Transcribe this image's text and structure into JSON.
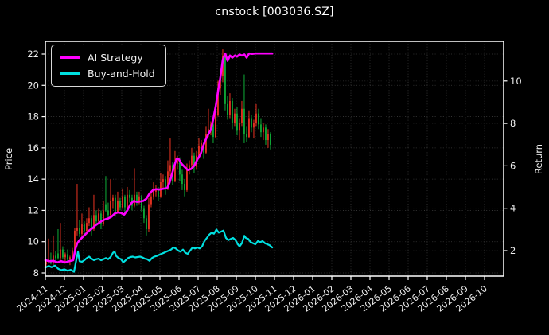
{
  "title": "cnstock [003036.SZ]",
  "legend": {
    "items": [
      {
        "label": "AI Strategy",
        "color": "#ff00ff"
      },
      {
        "label": "Buy-and-Hold",
        "color": "#00e0e0"
      }
    ]
  },
  "axes": {
    "left_label": "Price",
    "right_label": "Return",
    "price_ticks": [
      8,
      10,
      12,
      14,
      16,
      18,
      20,
      22
    ],
    "return_ticks": [
      2,
      4,
      6,
      8,
      10
    ],
    "x_ticks": [
      "2024-11",
      "2024-12",
      "2025-01",
      "2025-02",
      "2025-03",
      "2025-04",
      "2025-05",
      "2025-06",
      "2025-07",
      "2025-08",
      "2025-09",
      "2025-10",
      "2025-11",
      "2025-12",
      "2026-01",
      "2026-02",
      "2026-03",
      "2026-04",
      "2026-05",
      "2026-06",
      "2026-07",
      "2026-08",
      "2026-09",
      "2026-10"
    ]
  },
  "colors": {
    "background": "#000000",
    "frame": "#ffffff",
    "grid": "#6f6f6f",
    "text": "#eeeeee",
    "candle_up": "#ee3322",
    "candle_down": "#0fae38",
    "ai_strategy": "#ff00ff",
    "buy_and_hold": "#00e0e0"
  },
  "chart_data": {
    "type": "candlestick+line",
    "title": "cnstock [003036.SZ]",
    "x_axis": "months from 2024-11 (each x tick = 1 month, data ends ~2025-11)",
    "price_ylim": [
      7.8,
      22.8
    ],
    "return_ylim": [
      0.8,
      11.9
    ],
    "grid": "dotted, both y-axes and monthly x",
    "legend_position": "upper-left",
    "candles_note": "OHLC in Price units (left axis); red = up, green = down; t = months since 2024-11",
    "candles_t0": 0.04,
    "candles_dt": 0.125,
    "candles": [
      [
        8.55,
        8.9,
        8.35,
        8.7
      ],
      [
        8.7,
        10.2,
        8.6,
        8.8
      ],
      [
        8.8,
        9.3,
        8.55,
        8.65
      ],
      [
        8.65,
        10.4,
        8.5,
        9.1
      ],
      [
        9.1,
        9.4,
        8.8,
        8.95
      ],
      [
        9.25,
        10.8,
        8.85,
        8.95
      ],
      [
        8.95,
        11.2,
        8.7,
        9.5
      ],
      [
        9.5,
        9.7,
        8.9,
        9.0
      ],
      [
        9.0,
        9.3,
        8.6,
        9.2
      ],
      [
        9.2,
        9.5,
        8.75,
        8.85
      ],
      [
        8.85,
        9.1,
        8.5,
        9.0
      ],
      [
        9.0,
        9.6,
        8.85,
        9.45
      ],
      [
        9.45,
        10.9,
        9.3,
        10.7
      ],
      [
        10.7,
        13.7,
        10.4,
        10.9
      ],
      [
        10.9,
        11.4,
        10.3,
        10.5
      ],
      [
        10.5,
        11.8,
        10.3,
        11.1
      ],
      [
        11.1,
        11.3,
        10.5,
        10.7
      ],
      [
        10.7,
        11.5,
        10.6,
        11.2
      ],
      [
        11.2,
        12.2,
        11.0,
        11.5
      ],
      [
        11.5,
        11.7,
        10.4,
        10.8
      ],
      [
        10.8,
        13.0,
        10.7,
        11.7
      ],
      [
        11.7,
        12.0,
        11.1,
        11.3
      ],
      [
        11.3,
        12.1,
        11.2,
        11.8
      ],
      [
        11.8,
        12.0,
        10.8,
        11.1
      ],
      [
        11.1,
        12.6,
        11.0,
        12.0
      ],
      [
        12.4,
        14.2,
        11.9,
        12.0
      ],
      [
        12.0,
        12.5,
        11.4,
        11.7
      ],
      [
        11.7,
        14.0,
        11.6,
        12.6
      ],
      [
        12.6,
        13.0,
        12.1,
        12.8
      ],
      [
        12.8,
        13.0,
        11.6,
        11.9
      ],
      [
        11.9,
        13.2,
        11.8,
        12.6
      ],
      [
        12.6,
        12.8,
        12.0,
        12.2
      ],
      [
        12.2,
        13.4,
        12.1,
        12.9
      ],
      [
        12.9,
        13.0,
        11.9,
        12.2
      ],
      [
        12.2,
        13.5,
        12.1,
        13.0
      ],
      [
        13.0,
        13.3,
        12.5,
        12.8
      ],
      [
        12.8,
        13.0,
        12.0,
        12.3
      ],
      [
        12.3,
        14.7,
        12.2,
        13.0
      ],
      [
        13.0,
        13.2,
        12.3,
        12.5
      ],
      [
        12.5,
        13.2,
        12.4,
        12.9
      ],
      [
        12.9,
        13.0,
        11.9,
        12.1
      ],
      [
        12.1,
        12.3,
        11.2,
        11.5
      ],
      [
        11.5,
        11.7,
        10.4,
        10.8
      ],
      [
        10.8,
        12.8,
        10.6,
        12.4
      ],
      [
        12.4,
        13.1,
        12.2,
        12.9
      ],
      [
        12.9,
        13.8,
        12.7,
        13.2
      ],
      [
        13.2,
        13.6,
        12.9,
        13.4
      ],
      [
        13.4,
        13.5,
        12.6,
        12.9
      ],
      [
        12.9,
        14.4,
        12.8,
        13.8
      ],
      [
        13.8,
        14.3,
        13.4,
        14.0
      ],
      [
        14.0,
        14.2,
        13.0,
        13.4
      ],
      [
        13.4,
        15.2,
        13.3,
        14.5
      ],
      [
        14.5,
        16.6,
        14.2,
        14.9
      ],
      [
        14.9,
        15.1,
        13.6,
        13.9
      ],
      [
        13.9,
        15.8,
        13.8,
        15.0
      ],
      [
        15.0,
        15.5,
        14.6,
        15.2
      ],
      [
        15.2,
        15.4,
        13.9,
        14.3
      ],
      [
        14.3,
        14.6,
        13.3,
        13.7
      ],
      [
        13.7,
        14.0,
        12.9,
        13.3
      ],
      [
        13.3,
        15.0,
        13.2,
        14.6
      ],
      [
        14.6,
        15.2,
        14.3,
        14.9
      ],
      [
        14.9,
        16.0,
        14.7,
        15.5
      ],
      [
        15.5,
        15.7,
        14.4,
        14.8
      ],
      [
        14.8,
        15.8,
        14.6,
        15.5
      ],
      [
        15.5,
        16.6,
        15.3,
        16.1
      ],
      [
        16.1,
        16.5,
        15.7,
        16.3
      ],
      [
        16.3,
        16.4,
        15.3,
        15.7
      ],
      [
        15.7,
        17.4,
        15.6,
        16.9
      ],
      [
        16.9,
        18.5,
        16.7,
        17.2
      ],
      [
        17.2,
        17.7,
        16.8,
        17.5
      ],
      [
        17.5,
        17.7,
        16.3,
        16.7
      ],
      [
        16.7,
        18.4,
        16.6,
        18.1
      ],
      [
        18.1,
        20.3,
        18.0,
        19.8
      ],
      [
        19.8,
        21.0,
        19.4,
        20.6
      ],
      [
        20.6,
        22.3,
        20.2,
        21.9
      ],
      [
        21.9,
        22.1,
        18.4,
        18.8
      ],
      [
        18.8,
        19.3,
        17.8,
        18.1
      ],
      [
        18.1,
        19.5,
        17.9,
        19.0
      ],
      [
        19.0,
        19.2,
        17.2,
        17.6
      ],
      [
        17.6,
        18.5,
        17.4,
        18.2
      ],
      [
        18.2,
        18.6,
        16.8,
        17.1
      ],
      [
        17.1,
        17.9,
        16.5,
        17.6
      ],
      [
        17.6,
        19.0,
        17.4,
        18.5
      ],
      [
        18.5,
        20.7,
        16.3,
        16.9
      ],
      [
        16.9,
        17.4,
        16.4,
        16.7
      ],
      [
        16.7,
        18.4,
        16.6,
        17.9
      ],
      [
        17.9,
        18.1,
        17.0,
        17.3
      ],
      [
        17.3,
        17.8,
        16.6,
        17.6
      ],
      [
        17.6,
        18.8,
        17.4,
        18.2
      ],
      [
        18.2,
        18.5,
        17.2,
        17.5
      ],
      [
        17.5,
        17.9,
        16.7,
        17.0
      ],
      [
        17.0,
        17.6,
        16.5,
        17.3
      ],
      [
        17.3,
        17.5,
        16.2,
        16.5
      ],
      [
        16.5,
        17.2,
        16.0,
        16.9
      ],
      [
        16.9,
        17.0,
        15.9,
        16.2
      ]
    ],
    "series": [
      {
        "name": "AI Strategy",
        "axis": "return",
        "color": "#ff00ff",
        "points": [
          [
            0,
            1.55
          ],
          [
            0.21,
            1.5
          ],
          [
            0.42,
            1.52
          ],
          [
            0.63,
            1.45
          ],
          [
            0.83,
            1.5
          ],
          [
            1.04,
            1.45
          ],
          [
            1.25,
            1.5
          ],
          [
            1.46,
            1.55
          ],
          [
            1.58,
            2.1
          ],
          [
            1.67,
            2.35
          ],
          [
            1.79,
            2.5
          ],
          [
            1.96,
            2.65
          ],
          [
            2.13,
            2.8
          ],
          [
            2.29,
            2.95
          ],
          [
            2.46,
            3.05
          ],
          [
            2.63,
            3.2
          ],
          [
            2.79,
            3.3
          ],
          [
            2.96,
            3.4
          ],
          [
            3.13,
            3.48
          ],
          [
            3.29,
            3.52
          ],
          [
            3.46,
            3.6
          ],
          [
            3.63,
            3.75
          ],
          [
            3.79,
            3.8
          ],
          [
            3.96,
            3.78
          ],
          [
            4.13,
            3.7
          ],
          [
            4.29,
            3.9
          ],
          [
            4.46,
            4.2
          ],
          [
            4.63,
            4.35
          ],
          [
            4.79,
            4.3
          ],
          [
            4.96,
            4.32
          ],
          [
            5.13,
            4.35
          ],
          [
            5.29,
            4.45
          ],
          [
            5.46,
            4.7
          ],
          [
            5.63,
            4.85
          ],
          [
            5.79,
            4.9
          ],
          [
            5.96,
            4.88
          ],
          [
            6.17,
            4.92
          ],
          [
            6.38,
            4.95
          ],
          [
            6.5,
            5.2
          ],
          [
            6.63,
            5.6
          ],
          [
            6.75,
            6.0
          ],
          [
            6.88,
            6.35
          ],
          [
            7.0,
            6.3
          ],
          [
            7.13,
            6.1
          ],
          [
            7.29,
            5.95
          ],
          [
            7.46,
            5.8
          ],
          [
            7.63,
            5.85
          ],
          [
            7.79,
            6.0
          ],
          [
            7.96,
            6.3
          ],
          [
            8.13,
            6.55
          ],
          [
            8.25,
            6.9
          ],
          [
            8.38,
            7.2
          ],
          [
            8.54,
            7.5
          ],
          [
            8.67,
            7.7
          ],
          [
            8.79,
            8.2
          ],
          [
            8.92,
            8.8
          ],
          [
            9.04,
            9.5
          ],
          [
            9.17,
            10.2
          ],
          [
            9.29,
            11.0
          ],
          [
            9.42,
            11.3
          ],
          [
            9.54,
            10.95
          ],
          [
            9.67,
            11.2
          ],
          [
            9.79,
            11.1
          ],
          [
            9.92,
            11.2
          ],
          [
            10.04,
            11.15
          ],
          [
            10.17,
            11.25
          ],
          [
            10.29,
            11.2
          ],
          [
            10.42,
            11.25
          ],
          [
            10.54,
            11.1
          ],
          [
            10.67,
            11.3
          ],
          [
            10.83,
            11.28
          ],
          [
            11.0,
            11.3
          ],
          [
            11.21,
            11.3
          ],
          [
            11.42,
            11.3
          ],
          [
            11.63,
            11.3
          ],
          [
            11.88,
            11.3
          ]
        ]
      },
      {
        "name": "Buy-and-Hold",
        "axis": "return",
        "color": "#00e0e0",
        "points": [
          [
            0,
            1.2
          ],
          [
            0.17,
            1.28
          ],
          [
            0.33,
            1.22
          ],
          [
            0.5,
            1.3
          ],
          [
            0.67,
            1.15
          ],
          [
            0.83,
            1.08
          ],
          [
            1.0,
            1.12
          ],
          [
            1.17,
            1.05
          ],
          [
            1.33,
            1.1
          ],
          [
            1.5,
            1.0
          ],
          [
            1.63,
            1.6
          ],
          [
            1.71,
            1.95
          ],
          [
            1.79,
            1.5
          ],
          [
            1.92,
            1.48
          ],
          [
            2.04,
            1.55
          ],
          [
            2.17,
            1.65
          ],
          [
            2.29,
            1.72
          ],
          [
            2.42,
            1.62
          ],
          [
            2.54,
            1.55
          ],
          [
            2.67,
            1.6
          ],
          [
            2.79,
            1.62
          ],
          [
            2.92,
            1.55
          ],
          [
            3.04,
            1.6
          ],
          [
            3.17,
            1.65
          ],
          [
            3.29,
            1.6
          ],
          [
            3.42,
            1.7
          ],
          [
            3.54,
            1.9
          ],
          [
            3.63,
            1.95
          ],
          [
            3.71,
            1.75
          ],
          [
            3.83,
            1.65
          ],
          [
            3.96,
            1.6
          ],
          [
            4.08,
            1.45
          ],
          [
            4.21,
            1.55
          ],
          [
            4.33,
            1.65
          ],
          [
            4.46,
            1.7
          ],
          [
            4.58,
            1.72
          ],
          [
            4.71,
            1.68
          ],
          [
            4.83,
            1.7
          ],
          [
            4.96,
            1.72
          ],
          [
            5.08,
            1.68
          ],
          [
            5.21,
            1.62
          ],
          [
            5.33,
            1.6
          ],
          [
            5.46,
            1.52
          ],
          [
            5.58,
            1.65
          ],
          [
            5.71,
            1.72
          ],
          [
            5.83,
            1.75
          ],
          [
            5.96,
            1.8
          ],
          [
            6.08,
            1.85
          ],
          [
            6.21,
            1.9
          ],
          [
            6.33,
            1.95
          ],
          [
            6.46,
            2.0
          ],
          [
            6.58,
            2.05
          ],
          [
            6.71,
            2.15
          ],
          [
            6.83,
            2.1
          ],
          [
            6.96,
            2.0
          ],
          [
            7.08,
            1.95
          ],
          [
            7.21,
            2.05
          ],
          [
            7.33,
            1.9
          ],
          [
            7.46,
            1.85
          ],
          [
            7.58,
            2.0
          ],
          [
            7.71,
            2.15
          ],
          [
            7.83,
            2.1
          ],
          [
            7.96,
            2.15
          ],
          [
            8.08,
            2.1
          ],
          [
            8.21,
            2.2
          ],
          [
            8.33,
            2.45
          ],
          [
            8.46,
            2.6
          ],
          [
            8.58,
            2.75
          ],
          [
            8.71,
            2.85
          ],
          [
            8.83,
            2.8
          ],
          [
            8.96,
            3.0
          ],
          [
            9.08,
            2.85
          ],
          [
            9.21,
            2.9
          ],
          [
            9.33,
            2.95
          ],
          [
            9.46,
            2.6
          ],
          [
            9.58,
            2.5
          ],
          [
            9.71,
            2.55
          ],
          [
            9.83,
            2.6
          ],
          [
            9.96,
            2.5
          ],
          [
            10.08,
            2.3
          ],
          [
            10.17,
            2.2
          ],
          [
            10.29,
            2.35
          ],
          [
            10.42,
            2.7
          ],
          [
            10.5,
            2.6
          ],
          [
            10.63,
            2.55
          ],
          [
            10.75,
            2.4
          ],
          [
            10.88,
            2.35
          ],
          [
            11.0,
            2.3
          ],
          [
            11.13,
            2.45
          ],
          [
            11.25,
            2.4
          ],
          [
            11.38,
            2.45
          ],
          [
            11.5,
            2.35
          ],
          [
            11.63,
            2.3
          ],
          [
            11.75,
            2.25
          ],
          [
            11.88,
            2.15
          ]
        ]
      }
    ]
  }
}
